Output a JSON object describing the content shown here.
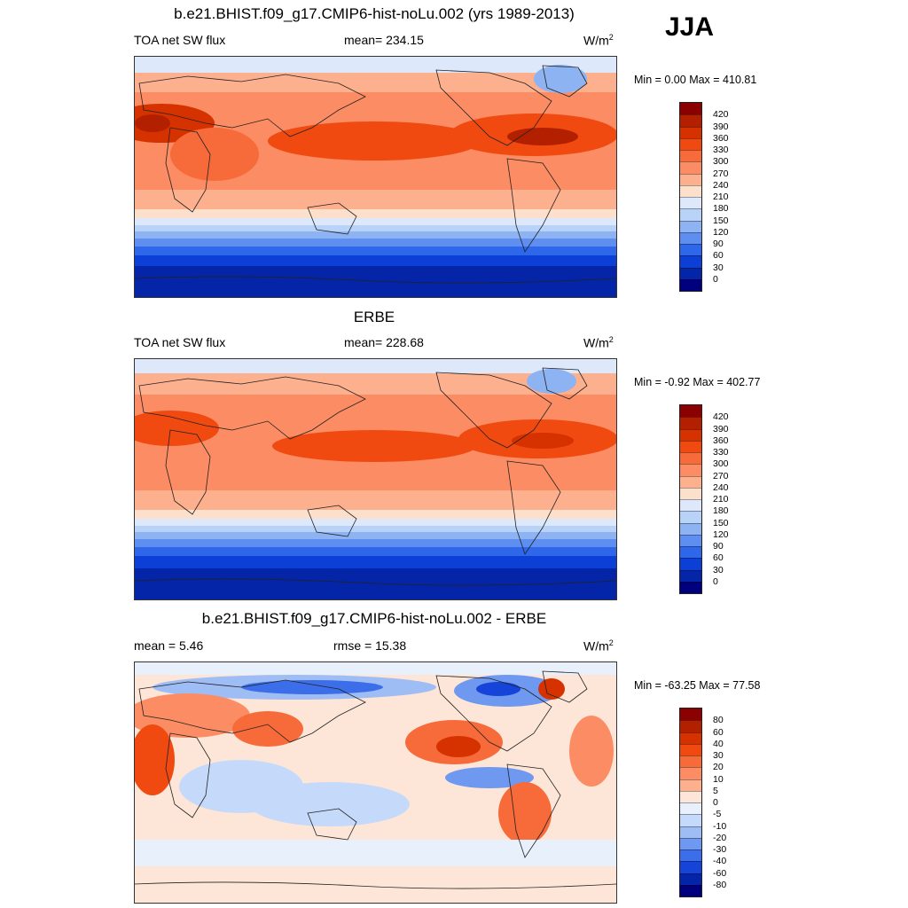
{
  "season": "JJA",
  "panels": [
    {
      "title": "b.e21.BHIST.f09_g17.CMIP6-hist-noLu.002 (yrs 1989-2013)",
      "left_label": "TOA net SW flux",
      "center_label": "mean= 234.15",
      "units": "W/m",
      "units_exp": "2",
      "minmax": "Min =   0.00 Max = 410.81",
      "colorbar_labels": [
        "420",
        "390",
        "360",
        "330",
        "300",
        "270",
        "240",
        "210",
        "180",
        "150",
        "120",
        "90",
        "60",
        "30",
        "0"
      ],
      "colors": [
        "#8b0000",
        "#b22000",
        "#d63200",
        "#f04a10",
        "#f76a3a",
        "#fb8c63",
        "#fdb08e",
        "#fde0cc",
        "#dde9fb",
        "#b9d2f7",
        "#8db3f3",
        "#5e8ff0",
        "#2e67ea",
        "#0c3fd6",
        "#0525a8",
        "#00007f"
      ]
    },
    {
      "title": "ERBE",
      "left_label": "TOA net SW flux",
      "center_label": "mean= 228.68",
      "units": "W/m",
      "units_exp": "2",
      "minmax": "Min =  -0.92 Max = 402.77",
      "colorbar_labels": [
        "420",
        "390",
        "360",
        "330",
        "300",
        "270",
        "240",
        "210",
        "180",
        "150",
        "120",
        "90",
        "60",
        "30",
        "0"
      ],
      "colors": [
        "#8b0000",
        "#b22000",
        "#d63200",
        "#f04a10",
        "#f76a3a",
        "#fb8c63",
        "#fdb08e",
        "#fde0cc",
        "#dde9fb",
        "#b9d2f7",
        "#8db3f3",
        "#5e8ff0",
        "#2e67ea",
        "#0c3fd6",
        "#0525a8",
        "#00007f"
      ]
    },
    {
      "title": "b.e21.BHIST.f09_g17.CMIP6-hist-noLu.002 - ERBE",
      "left_label": "mean =   5.46",
      "center_label": "rmse =  15.38",
      "units": "W/m",
      "units_exp": "2",
      "minmax": "Min = -63.25 Max =  77.58",
      "colorbar_labels": [
        "80",
        "60",
        "40",
        "30",
        "20",
        "10",
        "5",
        "0",
        "-5",
        "-10",
        "-20",
        "-30",
        "-40",
        "-60",
        "-80"
      ],
      "colors": [
        "#8b0000",
        "#b22000",
        "#d63200",
        "#f04a10",
        "#f76a3a",
        "#fb8c63",
        "#fdb08e",
        "#fde6d8",
        "#e8f0fc",
        "#c5dafa",
        "#9fbdf5",
        "#6f98f0",
        "#3d6eea",
        "#1744d8",
        "#0525a8",
        "#00007f"
      ]
    }
  ]
}
